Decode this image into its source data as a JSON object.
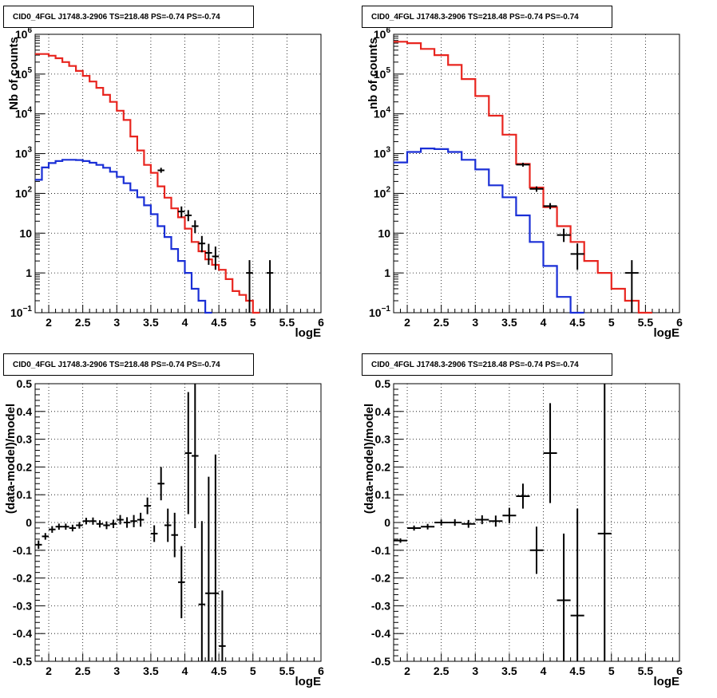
{
  "chart_data": [
    {
      "type": "histogram",
      "title": "CID0_4FGL J1748.3-2906 TS=218.48 PS=-0.74 PS=-0.74",
      "xlabel": "logE",
      "ylabel": "Nb of counts",
      "xlim": [
        1.8,
        6.0
      ],
      "ylim": [
        0.1,
        1000000
      ],
      "yscale": "log",
      "grid": true,
      "x_ticks": [
        "2",
        "2.5",
        "3",
        "3.5",
        "4",
        "4.5",
        "5",
        "5.5",
        "6"
      ],
      "y_ticks": [
        {
          "v": 0.1,
          "b": "10",
          "e": "−1"
        },
        {
          "v": 1,
          "b": "1",
          "e": ""
        },
        {
          "v": 10,
          "b": "10",
          "e": ""
        },
        {
          "v": 100,
          "b": "10",
          "e": "2"
        },
        {
          "v": 1000,
          "b": "10",
          "e": "3"
        },
        {
          "v": 10000,
          "b": "10",
          "e": "4"
        },
        {
          "v": 100000,
          "b": "10",
          "e": "5"
        },
        {
          "v": 1000000,
          "b": "10",
          "e": "6"
        }
      ],
      "bin_edges_start": 1.8,
      "bin_width": 0.1,
      "series": [
        {
          "color": "#e8251f",
          "values": [
            320000,
            320000,
            290000,
            250000,
            200000,
            160000,
            120000,
            90000,
            65000,
            45000,
            30000,
            20000,
            12000,
            7000,
            2700,
            1200,
            520,
            330,
            150,
            78,
            42,
            25,
            13,
            6,
            3.5,
            2.2,
            1.6,
            1.2,
            0.7,
            0.35,
            0.28,
            0.2,
            0.1
          ]
        },
        {
          "color": "#1a2fd6",
          "values": [
            220,
            450,
            580,
            650,
            700,
            700,
            690,
            650,
            590,
            520,
            440,
            350,
            260,
            180,
            120,
            80,
            50,
            30,
            15,
            8,
            4,
            2,
            1,
            0.4,
            0.2,
            0.1
          ]
        }
      ],
      "data_points": [
        {
          "x": 3.65,
          "y": 380,
          "ylo": 330,
          "yhi": 440
        },
        {
          "x": 3.95,
          "y": 35,
          "ylo": 25,
          "yhi": 47
        },
        {
          "x": 4.05,
          "y": 28,
          "ylo": 20,
          "yhi": 38
        },
        {
          "x": 4.15,
          "y": 15,
          "ylo": 10,
          "yhi": 21
        },
        {
          "x": 4.25,
          "y": 5.5,
          "ylo": 3.3,
          "yhi": 8.5
        },
        {
          "x": 4.35,
          "y": 3.2,
          "ylo": 1.6,
          "yhi": 5.4
        },
        {
          "x": 4.45,
          "y": 2.6,
          "ylo": 1.2,
          "yhi": 4.6
        },
        {
          "x": 4.95,
          "y": 1,
          "ylo": 0.1,
          "yhi": 2.1
        },
        {
          "x": 5.25,
          "y": 1,
          "ylo": 0.1,
          "yhi": 2.1
        }
      ]
    },
    {
      "type": "histogram",
      "title": "CID0_4FGL J1748.3-2906 TS=218.48 PS=-0.74 PS=-0.74",
      "xlabel": "logE",
      "ylabel": "nb of counts",
      "xlim": [
        1.8,
        6.0
      ],
      "ylim": [
        0.1,
        1000000
      ],
      "yscale": "log",
      "grid": true,
      "x_ticks": [
        "2",
        "2.5",
        "3",
        "3.5",
        "4",
        "4.5",
        "5",
        "5.5",
        "6"
      ],
      "y_ticks": [
        {
          "v": 0.1,
          "b": "10",
          "e": "−1"
        },
        {
          "v": 1,
          "b": "1",
          "e": ""
        },
        {
          "v": 10,
          "b": "10",
          "e": ""
        },
        {
          "v": 100,
          "b": "10",
          "e": "2"
        },
        {
          "v": 1000,
          "b": "10",
          "e": "3"
        },
        {
          "v": 10000,
          "b": "10",
          "e": "4"
        },
        {
          "v": 100000,
          "b": "10",
          "e": "5"
        },
        {
          "v": 1000000,
          "b": "10",
          "e": "6"
        }
      ],
      "bin_edges_start": 1.8,
      "bin_width": 0.2,
      "series": [
        {
          "color": "#e8251f",
          "values": [
            650000,
            600000,
            430000,
            300000,
            170000,
            75000,
            28000,
            9000,
            3000,
            550,
            140,
            45,
            15,
            6,
            2,
            1,
            0.4,
            0.2,
            0.1
          ]
        },
        {
          "color": "#1a2fd6",
          "values": [
            600,
            1100,
            1350,
            1300,
            1100,
            700,
            400,
            160,
            80,
            28,
            6,
            1.5,
            0.25,
            0.1
          ]
        }
      ],
      "data_points": [
        {
          "x": 3.7,
          "y": 530,
          "ylo": 470,
          "yhi": 590
        },
        {
          "x": 3.9,
          "y": 130,
          "ylo": 110,
          "yhi": 150
        },
        {
          "x": 4.1,
          "y": 48,
          "ylo": 40,
          "yhi": 57
        },
        {
          "x": 4.3,
          "y": 9,
          "ylo": 6,
          "yhi": 13
        },
        {
          "x": 4.5,
          "y": 3,
          "ylo": 1.2,
          "yhi": 5.5
        },
        {
          "x": 5.3,
          "y": 1,
          "ylo": 0.1,
          "yhi": 2.1
        }
      ]
    },
    {
      "type": "errorbar",
      "title": "CID0_4FGL J1748.3-2906 TS=218.48 PS=-0.74 PS=-0.74",
      "xlabel": "logE",
      "ylabel": "(data-model)/model",
      "xlim": [
        1.8,
        6.0
      ],
      "ylim": [
        -0.5,
        0.5
      ],
      "grid": true,
      "x_ticks": [
        "2",
        "2.5",
        "3",
        "3.5",
        "4",
        "4.5",
        "5",
        "5.5",
        "6"
      ],
      "y_ticks": [
        "-0.5",
        "-0.4",
        "-0.3",
        "-0.2",
        "-0.1",
        "0",
        "0.1",
        "0.2",
        "0.3",
        "0.4",
        "0.5"
      ],
      "half_width": 0.05,
      "points": [
        {
          "x": 1.85,
          "y": -0.08,
          "e": 0.015
        },
        {
          "x": 1.95,
          "y": -0.05,
          "e": 0.012
        },
        {
          "x": 2.05,
          "y": -0.025,
          "e": 0.012
        },
        {
          "x": 2.15,
          "y": -0.015,
          "e": 0.011
        },
        {
          "x": 2.25,
          "y": -0.015,
          "e": 0.011
        },
        {
          "x": 2.35,
          "y": -0.02,
          "e": 0.012
        },
        {
          "x": 2.45,
          "y": -0.01,
          "e": 0.012
        },
        {
          "x": 2.55,
          "y": 0.005,
          "e": 0.012
        },
        {
          "x": 2.65,
          "y": 0.005,
          "e": 0.013
        },
        {
          "x": 2.75,
          "y": -0.005,
          "e": 0.013
        },
        {
          "x": 2.85,
          "y": -0.01,
          "e": 0.014
        },
        {
          "x": 2.95,
          "y": -0.005,
          "e": 0.015
        },
        {
          "x": 3.05,
          "y": 0.01,
          "e": 0.017
        },
        {
          "x": 3.15,
          "y": 0.0,
          "e": 0.019
        },
        {
          "x": 3.25,
          "y": 0.005,
          "e": 0.022
        },
        {
          "x": 3.35,
          "y": 0.01,
          "e": 0.025
        },
        {
          "x": 3.45,
          "y": 0.06,
          "e": 0.03
        },
        {
          "x": 3.55,
          "y": -0.04,
          "e": 0.03
        },
        {
          "x": 3.65,
          "y": 0.14,
          "e": 0.06
        },
        {
          "x": 3.75,
          "y": -0.01,
          "e": 0.06
        },
        {
          "x": 3.85,
          "y": -0.045,
          "e": 0.08
        },
        {
          "x": 3.95,
          "y": -0.215,
          "e": 0.13
        },
        {
          "x": 4.05,
          "y": 0.25,
          "e": 0.22
        },
        {
          "x": 4.15,
          "y": 0.24,
          "e": 0.26
        },
        {
          "x": 4.25,
          "y": -0.295,
          "e": 0.3
        },
        {
          "x": 4.35,
          "y": -0.255,
          "e": 0.42
        },
        {
          "x": 4.45,
          "y": -0.255,
          "e": 0.5
        },
        {
          "x": 4.55,
          "y": -0.445,
          "e": 0.2
        }
      ]
    },
    {
      "type": "errorbar",
      "title": "CID0_4FGL J1748.3-2906 TS=218.48 PS=-0.74 PS=-0.74",
      "xlabel": "logE",
      "ylabel": "(data-model)/model",
      "xlim": [
        1.8,
        6.0
      ],
      "ylim": [
        -0.5,
        0.5
      ],
      "grid": true,
      "x_ticks": [
        "2",
        "2.5",
        "3",
        "3.5",
        "4",
        "4.5",
        "5",
        "5.5",
        "6"
      ],
      "y_ticks": [
        "-0.5",
        "-0.4",
        "-0.3",
        "-0.2",
        "-0.1",
        "0",
        "0.1",
        "0.2",
        "0.3",
        "0.4",
        "0.5"
      ],
      "half_width": 0.1,
      "points": [
        {
          "x": 1.9,
          "y": -0.065,
          "e": 0.008
        },
        {
          "x": 2.1,
          "y": -0.02,
          "e": 0.009
        },
        {
          "x": 2.3,
          "y": -0.015,
          "e": 0.01
        },
        {
          "x": 2.5,
          "y": 0.0,
          "e": 0.011
        },
        {
          "x": 2.7,
          "y": 0.0,
          "e": 0.012
        },
        {
          "x": 2.9,
          "y": -0.005,
          "e": 0.014
        },
        {
          "x": 3.1,
          "y": 0.01,
          "e": 0.016
        },
        {
          "x": 3.3,
          "y": 0.005,
          "e": 0.02
        },
        {
          "x": 3.5,
          "y": 0.025,
          "e": 0.028
        },
        {
          "x": 3.7,
          "y": 0.095,
          "e": 0.045
        },
        {
          "x": 3.9,
          "y": -0.1,
          "e": 0.085
        },
        {
          "x": 4.1,
          "y": 0.25,
          "e": 0.18
        },
        {
          "x": 4.3,
          "y": -0.28,
          "e": 0.24
        },
        {
          "x": 4.5,
          "y": -0.335,
          "e": 0.385
        },
        {
          "x": 4.9,
          "y": -0.04,
          "e": 0.6
        }
      ]
    }
  ]
}
